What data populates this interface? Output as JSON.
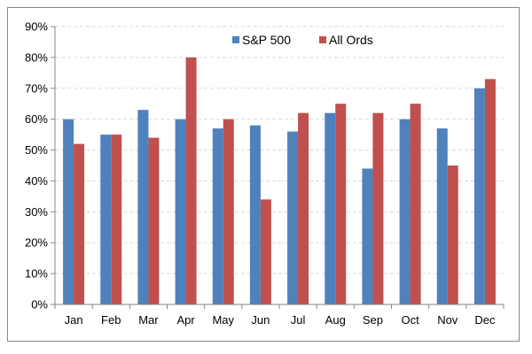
{
  "chart_data": {
    "type": "bar",
    "categories": [
      "Jan",
      "Feb",
      "Mar",
      "Apr",
      "May",
      "Jun",
      "Jul",
      "Aug",
      "Sep",
      "Oct",
      "Nov",
      "Dec"
    ],
    "series": [
      {
        "name": "S&P 500",
        "color": "#4F81BD",
        "values": [
          60,
          55,
          63,
          60,
          57,
          58,
          56,
          62,
          44,
          60,
          57,
          70
        ]
      },
      {
        "name": "All Ords",
        "color": "#C0504D",
        "values": [
          52,
          55,
          54,
          80,
          60,
          34,
          62,
          65,
          62,
          65,
          45,
          73
        ]
      }
    ],
    "ylim": [
      0,
      90
    ],
    "yticks": [
      0,
      10,
      20,
      30,
      40,
      50,
      60,
      70,
      80,
      90
    ],
    "ytick_labels": [
      "0%",
      "10%",
      "20%",
      "30%",
      "40%",
      "50%",
      "60%",
      "70%",
      "80%",
      "90%"
    ],
    "grid": true,
    "legend_position": "top-center",
    "title": "",
    "xlabel": "",
    "ylabel": ""
  }
}
